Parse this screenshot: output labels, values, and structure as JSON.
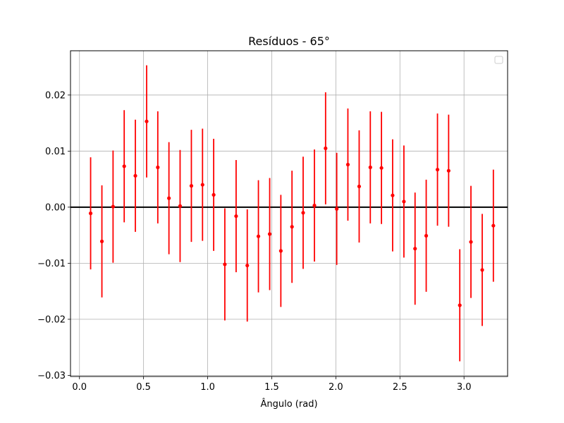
{
  "chart_data": {
    "type": "scatter",
    "title": "Resíduos - 65°",
    "xlabel": "Ângulo (rad)",
    "ylabel": "",
    "xlim": [
      -0.07,
      3.34
    ],
    "ylim": [
      -0.0302,
      0.0279
    ],
    "xticks": [
      0.0,
      0.5,
      1.0,
      1.5,
      2.0,
      2.5,
      3.0
    ],
    "xtick_labels": [
      "0.0",
      "0.5",
      "1.0",
      "1.5",
      "2.0",
      "2.5",
      "3.0"
    ],
    "yticks": [
      -0.03,
      -0.02,
      -0.01,
      0.0,
      0.01,
      0.02
    ],
    "ytick_labels": [
      "−0.03",
      "−0.02",
      "−0.01",
      "0.00",
      "0.01",
      "0.02"
    ],
    "grid": true,
    "legend": "upper-right (empty)",
    "reference_line": {
      "y": 0,
      "color": "#000000"
    },
    "series": [
      {
        "color": "#ff0000",
        "error": 0.01,
        "x": [
          0.087,
          0.175,
          0.262,
          0.349,
          0.436,
          0.524,
          0.611,
          0.698,
          0.785,
          0.873,
          0.96,
          1.047,
          1.134,
          1.222,
          1.309,
          1.396,
          1.484,
          1.571,
          1.658,
          1.745,
          1.833,
          1.92,
          2.007,
          2.094,
          2.182,
          2.269,
          2.356,
          2.443,
          2.531,
          2.618,
          2.705,
          2.793,
          2.88,
          2.967,
          3.054,
          3.142,
          3.229
        ],
        "y": [
          -0.0011,
          -0.0061,
          0.0001,
          0.0073,
          0.0056,
          0.0153,
          0.0071,
          0.0016,
          0.0002,
          0.0038,
          0.004,
          0.0022,
          -0.0102,
          -0.0016,
          -0.0104,
          -0.0052,
          -0.0048,
          -0.0078,
          -0.0035,
          -0.001,
          0.0003,
          0.0105,
          -0.0003,
          0.0076,
          0.0037,
          0.0071,
          0.007,
          0.0021,
          0.001,
          -0.0074,
          -0.0051,
          0.0067,
          0.0065,
          -0.0175,
          -0.0062,
          -0.0112,
          -0.0033
        ]
      }
    ]
  }
}
